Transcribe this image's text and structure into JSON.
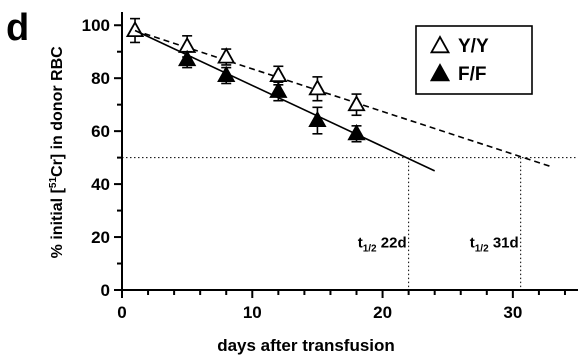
{
  "panel_label": "d",
  "chart_data": {
    "type": "scatter",
    "xlabel": "days after transfusion",
    "ylabel_parts": {
      "before": "% initial [",
      "sup": "51",
      "middle": "Cr] in donor RBC"
    },
    "xlim": [
      0,
      35
    ],
    "ylim": [
      0,
      105
    ],
    "x_ticks": [
      0,
      10,
      20,
      30
    ],
    "y_ticks": [
      0,
      20,
      40,
      60,
      80,
      100
    ],
    "grid": false,
    "legend_position": "top-right",
    "series": [
      {
        "name": "Y/Y",
        "marker": "open-triangle",
        "line_style": "dashed",
        "x": [
          1,
          5,
          8,
          12,
          15,
          18
        ],
        "y": [
          98,
          92,
          88,
          81,
          76,
          70
        ],
        "error": [
          4.5,
          4,
          3,
          3.5,
          4.5,
          4
        ],
        "fit_line": {
          "x": [
            1,
            33
          ],
          "y": [
            98,
            46.5
          ]
        }
      },
      {
        "name": "F/F",
        "marker": "filled-triangle",
        "line_style": "solid",
        "x": [
          5,
          8,
          12,
          15,
          18
        ],
        "y": [
          87,
          81,
          75,
          64,
          59
        ],
        "error": [
          3,
          3,
          3.5,
          5,
          3
        ],
        "fit_line": {
          "x": [
            1,
            24
          ],
          "y": [
            98,
            45
          ]
        }
      }
    ],
    "half_life": {
      "y_level": 50,
      "annotations": [
        {
          "x": 22,
          "label_main": "t",
          "label_sub": "1/2",
          "label_value": "22d"
        },
        {
          "x": 30.6,
          "label_main": "t",
          "label_sub": "1/2",
          "label_value": "31d"
        }
      ]
    }
  }
}
